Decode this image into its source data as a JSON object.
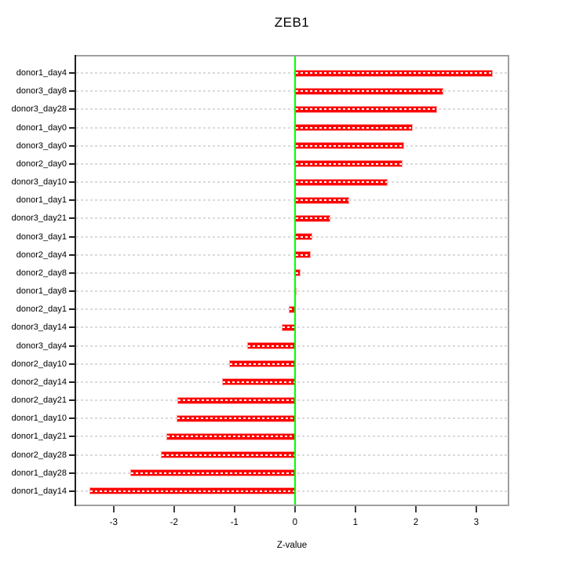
{
  "chart_data": {
    "type": "bar",
    "orientation": "horizontal",
    "title": "ZEB1",
    "xlabel": "Z-value",
    "categories": [
      "donor1_day4",
      "donor3_day8",
      "donor3_day28",
      "donor1_day0",
      "donor3_day0",
      "donor2_day0",
      "donor3_day10",
      "donor1_day1",
      "donor3_day21",
      "donor3_day1",
      "donor2_day4",
      "donor2_day8",
      "donor1_day8",
      "donor2_day1",
      "donor3_day14",
      "donor3_day4",
      "donor2_day10",
      "donor2_day14",
      "donor2_day21",
      "donor1_day10",
      "donor1_day21",
      "donor2_day28",
      "donor1_day28",
      "donor1_day14"
    ],
    "values": [
      3.27,
      2.46,
      2.35,
      1.95,
      1.81,
      1.78,
      1.53,
      0.9,
      0.58,
      0.29,
      0.26,
      0.09,
      0.01,
      -0.1,
      -0.22,
      -0.79,
      -1.09,
      -1.2,
      -1.94,
      -1.96,
      -2.13,
      -2.22,
      -2.72,
      -3.4
    ],
    "xticks": [
      -3,
      -2,
      -1,
      0,
      1,
      2,
      3
    ],
    "xlim": [
      -3.62,
      3.52
    ],
    "grid": "horizontal-dashed",
    "legend": "none",
    "bar_color": "#ff0000",
    "bar_border_color": "#ff9f9f",
    "bar_overlay_dash_color": "#ffffff",
    "zero_line_color": "#00ff00",
    "gridline_color": "#dbdbdb",
    "box_color": "#9f9f9f",
    "axis_color": "#202020"
  }
}
